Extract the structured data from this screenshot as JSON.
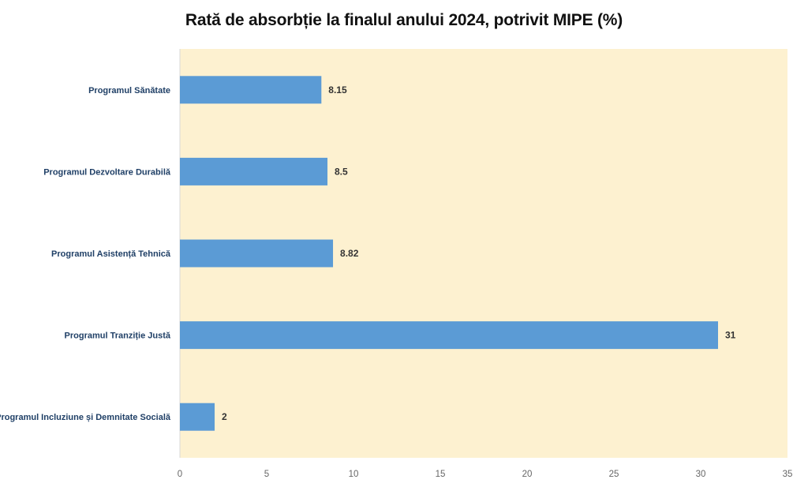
{
  "chart_data": {
    "type": "bar",
    "orientation": "horizontal",
    "title": "Rată de absorbție la finalul anului 2024, potrivit MIPE (%)",
    "categories": [
      "Programul Sănătate",
      "Programul Dezvoltare Durabilă",
      "Programul Asistență Tehnică",
      "Programul Tranziție Justă",
      "Programul Incluziune și Demnitate Socială"
    ],
    "values": [
      8.15,
      8.5,
      8.82,
      31,
      2
    ],
    "value_labels": [
      "8.15",
      "8.5",
      "8.82",
      "31",
      "2"
    ],
    "xlim": [
      0,
      35
    ],
    "xticks": [
      "0",
      "5",
      "10",
      "15",
      "20",
      "25",
      "30",
      "35"
    ],
    "grid": false,
    "legend": "none",
    "colors": {
      "bar": "#5b9bd5",
      "plot_background": "#fdf1d0",
      "category_label": "#1f3f66",
      "value_label": "#333333",
      "tick_label": "#666666"
    }
  }
}
